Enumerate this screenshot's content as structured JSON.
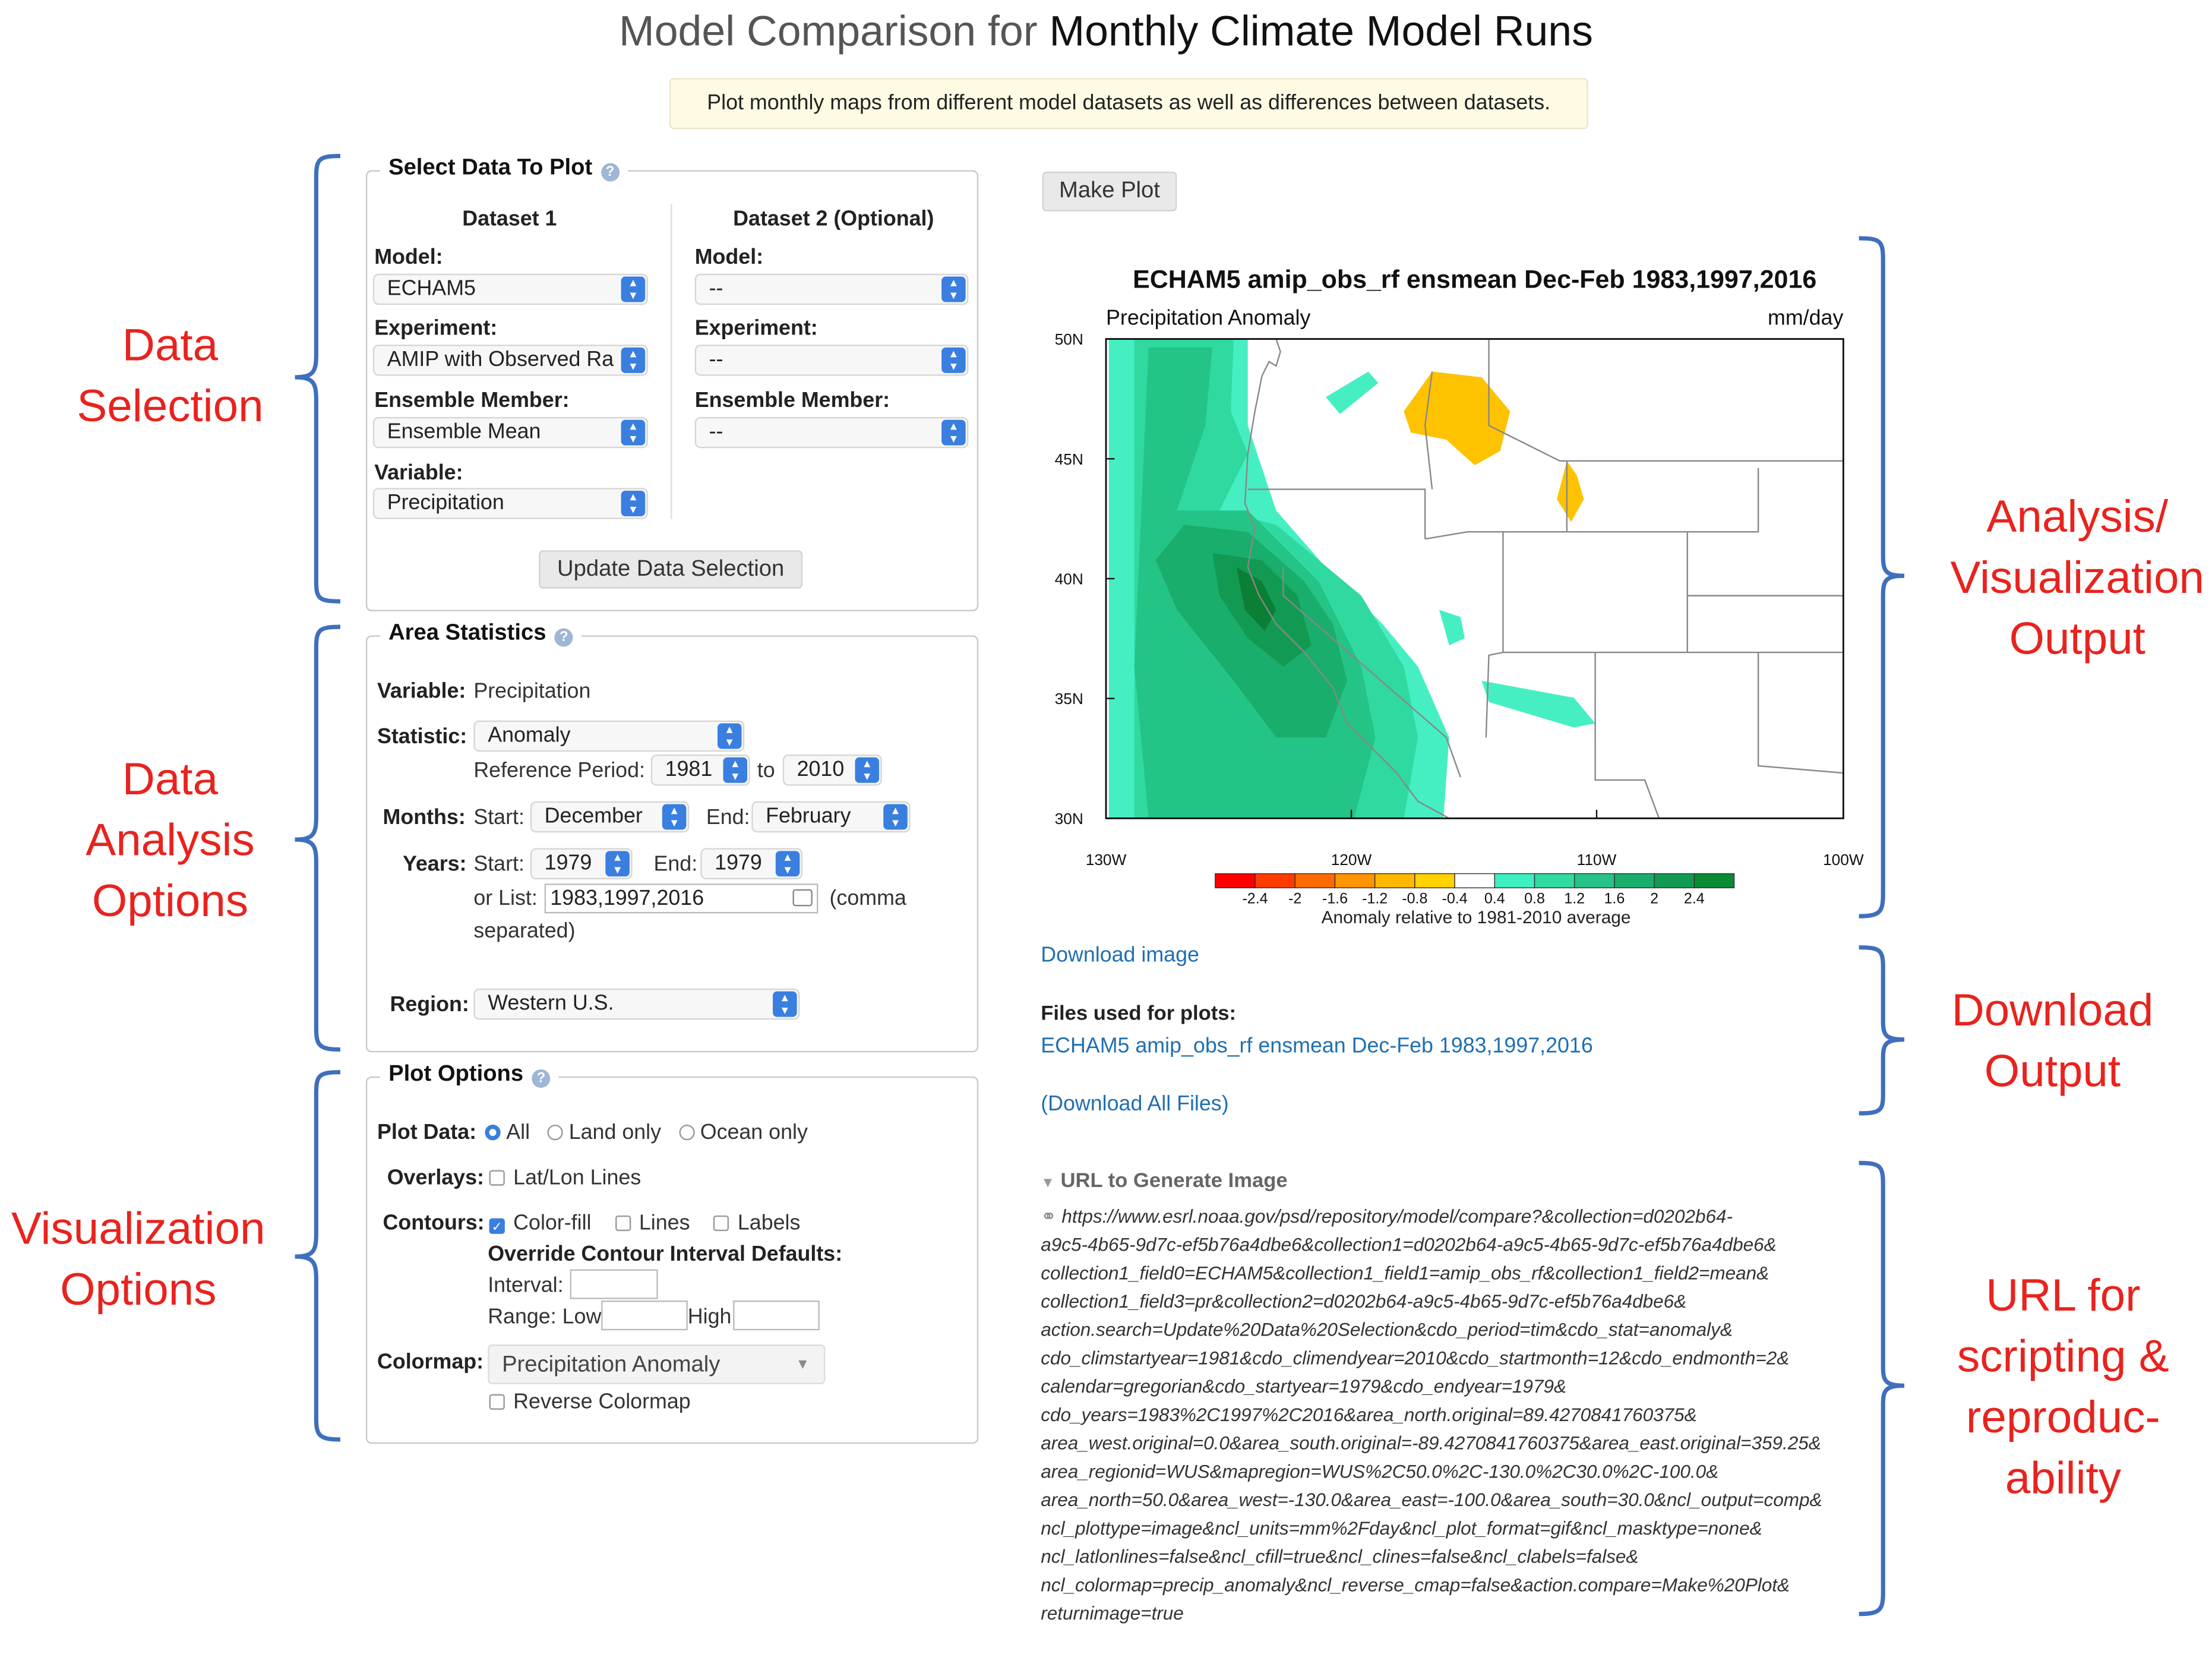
{
  "header": {
    "title_prefix": "Model Comparison for ",
    "title_main": "Monthly Climate Model Runs",
    "banner": "Plot monthly maps from different model datasets as well as differences between datasets."
  },
  "annotations": {
    "data_selection": [
      "Data",
      "Selection"
    ],
    "data_analysis": [
      "Data",
      "Analysis",
      "Options"
    ],
    "visualization_options": [
      "Visualization",
      "Options"
    ],
    "analysis_output": [
      "Analysis/",
      "Visualization",
      "Output"
    ],
    "download_output": [
      "Download",
      "Output"
    ],
    "url_scripting": [
      "URL for",
      "scripting &",
      "reproduc-",
      "ability"
    ]
  },
  "select_data": {
    "legend": "Select Data To Plot",
    "dataset1_title": "Dataset 1",
    "dataset2_title": "Dataset 2 (Optional)",
    "model_label": "Model:",
    "experiment_label": "Experiment:",
    "ensemble_label": "Ensemble Member:",
    "variable_label": "Variable:",
    "d1_model": "ECHAM5",
    "d1_experiment": "AMIP with Observed Ra",
    "d1_ensemble": "Ensemble Mean",
    "d1_variable": "Precipitation",
    "d2_model": "--",
    "d2_experiment": "--",
    "d2_ensemble": "--",
    "update_button": "Update Data Selection"
  },
  "area_stats": {
    "legend": "Area Statistics",
    "variable_label": "Variable:",
    "variable_value": "Precipitation",
    "statistic_label": "Statistic:",
    "statistic_value": "Anomaly",
    "ref_label": "Reference Period:",
    "ref_start": "1981",
    "ref_to": "to",
    "ref_end": "2010",
    "months_label": "Months:",
    "start_label": "Start:",
    "month_start": "December",
    "end_label": "End:",
    "month_end": "February",
    "years_label": "Years:",
    "year_start": "1979",
    "year_end": "1979",
    "orlist_label": "or List:",
    "orlist_value": "1983,1997,2016",
    "comma_note1": "(comma",
    "comma_note2": "separated)",
    "region_label": "Region:",
    "region_value": "Western U.S."
  },
  "plot_options": {
    "legend": "Plot Options",
    "plotdata_label": "Plot Data:",
    "opt_all": "All",
    "opt_land": "Land only",
    "opt_ocean": "Ocean only",
    "overlays_label": "Overlays:",
    "latlon": "Lat/Lon Lines",
    "contours_label": "Contours:",
    "colorfill": "Color-fill",
    "lines": "Lines",
    "labels": "Labels",
    "override": "Override Contour Interval Defaults:",
    "interval_label": "Interval:",
    "range_label": "Range: Low",
    "high_label": "High",
    "colormap_label": "Colormap:",
    "colormap_value": "Precipitation Anomaly",
    "reverse": "Reverse Colormap"
  },
  "output": {
    "make_plot": "Make Plot",
    "download_image": "Download image",
    "files_label": "Files used for plots:",
    "files_link": "ECHAM5 amip_obs_rf ensmean Dec-Feb 1983,1997,2016",
    "download_all": "(Download All Files)",
    "url_heading": "URL to Generate Image",
    "url_lines": [
      "https://www.esrl.noaa.gov/psd/repository/model/compare?&collection=d0202b64-",
      "a9c5-4b65-9d7c-ef5b76a4dbe6&collection1=d0202b64-a9c5-4b65-9d7c-ef5b76a4dbe6&",
      "collection1_field0=ECHAM5&collection1_field1=amip_obs_rf&collection1_field2=mean&",
      "collection1_field3=pr&collection2=d0202b64-a9c5-4b65-9d7c-ef5b76a4dbe6&",
      "action.search=Update%20Data%20Selection&cdo_period=tim&cdo_stat=anomaly&",
      "cdo_climstartyear=1981&cdo_climendyear=2010&cdo_startmonth=12&cdo_endmonth=2&",
      "calendar=gregorian&cdo_startyear=1979&cdo_endyear=1979&",
      "cdo_years=1983%2C1997%2C2016&area_north.original=89.4270841760375&",
      "area_west.original=0.0&area_south.original=-89.4270841760375&area_east.original=359.25&",
      "area_regionid=WUS&mapregion=WUS%2C50.0%2C-130.0%2C30.0%2C-100.0&",
      "area_north=50.0&area_west=-130.0&area_east=-100.0&area_south=30.0&ncl_output=comp&",
      "ncl_plottype=image&ncl_units=mm%2Fday&ncl_plot_format=gif&ncl_masktype=none&",
      "ncl_latlonlines=false&ncl_cfill=true&ncl_clines=false&ncl_clabels=false&",
      "ncl_colormap=precip_anomaly&ncl_reverse_cmap=false&action.compare=Make%20Plot&",
      "returnimage=true"
    ]
  },
  "map": {
    "title": "ECHAM5 amip_obs_rf ensmean Dec-Feb 1983,1997,2016",
    "left_label": "Precipitation Anomaly",
    "right_label": "mm/day",
    "lat_ticks": [
      "50N",
      "45N",
      "40N",
      "35N",
      "30N"
    ],
    "lon_ticks": [
      "130W",
      "120W",
      "110W",
      "100W"
    ],
    "colorbar_ticks": [
      "-2.4",
      "-2",
      "-1.6",
      "-1.2",
      "-0.8",
      "-0.4",
      "0.4",
      "0.8",
      "1.2",
      "1.6",
      "2",
      "2.4"
    ],
    "colorbar_colors": [
      "#ff0000",
      "#ff3b00",
      "#ff6a00",
      "#ff9500",
      "#ffb800",
      "#ffd200",
      "#ffffff",
      "#3ef0c0",
      "#2fdba0",
      "#25c486",
      "#1aae6c",
      "#129a52",
      "#0a8a33"
    ],
    "colorbar_caption": "Anomaly relative to 1981-2010 average"
  }
}
